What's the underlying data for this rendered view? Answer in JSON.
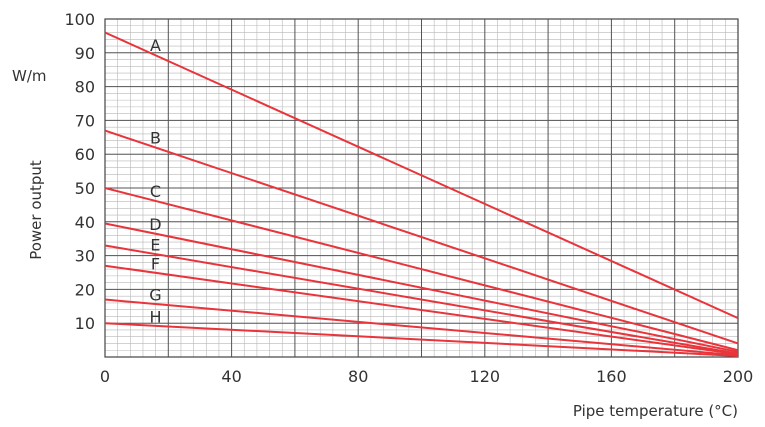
{
  "chart_data": {
    "type": "line",
    "xlabel": "Pipe temperature (°C)",
    "ylabel": "Power output",
    "yunit": "W/m",
    "xlim": [
      0,
      200
    ],
    "ylim": [
      0,
      100
    ],
    "x_ticks": [
      0,
      40,
      80,
      120,
      160,
      200
    ],
    "y_ticks": [
      10,
      20,
      30,
      40,
      50,
      60,
      70,
      80,
      90,
      100
    ],
    "grid": true,
    "line_color": "#e8343a",
    "series": [
      {
        "name": "A",
        "x": [
          0,
          200
        ],
        "y": [
          96,
          11.5
        ]
      },
      {
        "name": "B",
        "x": [
          0,
          200
        ],
        "y": [
          67,
          4
        ]
      },
      {
        "name": "C",
        "x": [
          0,
          200
        ],
        "y": [
          50,
          2
        ]
      },
      {
        "name": "D",
        "x": [
          0,
          200
        ],
        "y": [
          39.5,
          1.5
        ]
      },
      {
        "name": "E",
        "x": [
          0,
          200
        ],
        "y": [
          33,
          1
        ]
      },
      {
        "name": "F",
        "x": [
          0,
          200
        ],
        "y": [
          27,
          0.8
        ]
      },
      {
        "name": "G",
        "x": [
          0,
          200
        ],
        "y": [
          17,
          0.5
        ]
      },
      {
        "name": "H",
        "x": [
          0,
          200
        ],
        "y": [
          10,
          0.3
        ]
      }
    ]
  }
}
